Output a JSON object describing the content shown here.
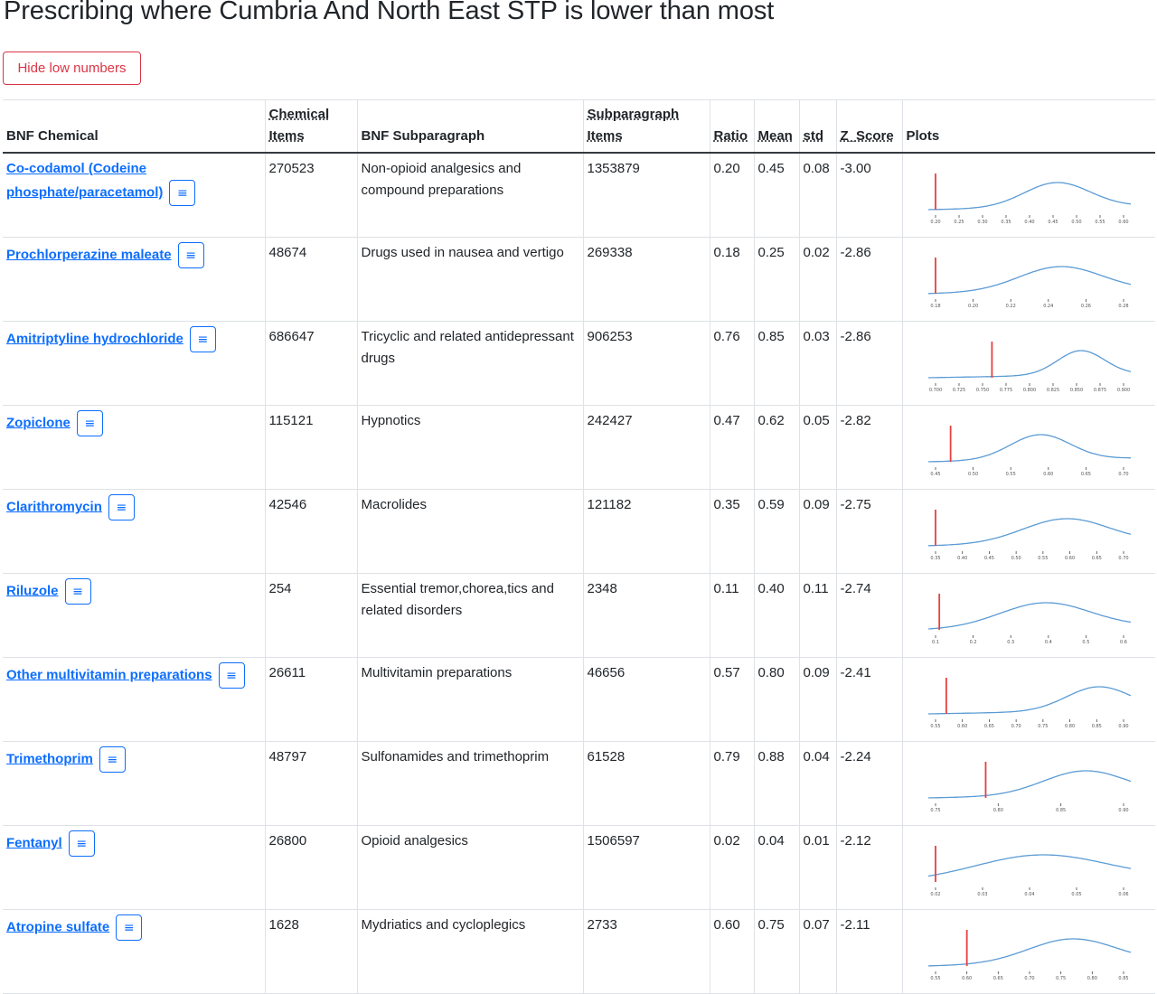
{
  "page": {
    "title": "Prescribing where Cumbria And North East STP is lower than most",
    "toggle_label": "Hide low numbers"
  },
  "table": {
    "headers": {
      "chemical": "BNF Chemical",
      "chemical_items": "Chemical Items",
      "subparagraph": "BNF Subparagraph",
      "subparagraph_items": "Subparagraph Items",
      "ratio": "Ratio",
      "mean": "Mean",
      "std": "std",
      "z_score": "Z_Score",
      "plots": "Plots"
    },
    "menu_icon": "hamburger-list-icon",
    "rows": [
      {
        "chemical": "Co-codamol (Codeine phosphate/paracetamol)",
        "chemical_items": "270523",
        "subparagraph": "Non-opioid analgesics and compound preparations",
        "subparagraph_items": "1353879",
        "ratio": "0.20",
        "mean": "0.45",
        "std": "0.08",
        "z_score": "-3.00",
        "plot": {
          "ticks": [
            "0.20",
            "0.25",
            "0.30",
            "0.35",
            "0.40",
            "0.45",
            "0.50",
            "0.55",
            "0.60"
          ],
          "marker": 0.2,
          "peak": 0.46,
          "spread": 0.07
        }
      },
      {
        "chemical": "Prochlorperazine maleate",
        "chemical_items": "48674",
        "subparagraph": "Drugs used in nausea and vertigo",
        "subparagraph_items": "269338",
        "ratio": "0.18",
        "mean": "0.25",
        "std": "0.02",
        "z_score": "-2.86",
        "plot": {
          "ticks": [
            "0.18",
            "0.20",
            "0.22",
            "0.24",
            "0.26",
            "0.28"
          ],
          "marker": 0.18,
          "peak": 0.247,
          "spread": 0.022
        }
      },
      {
        "chemical": "Amitriptyline hydrochloride",
        "chemical_items": "686647",
        "subparagraph": "Tricyclic and related antidepressant drugs",
        "subparagraph_items": "906253",
        "ratio": "0.76",
        "mean": "0.85",
        "std": "0.03",
        "z_score": "-2.86",
        "plot": {
          "ticks": [
            "0.700",
            "0.725",
            "0.750",
            "0.775",
            "0.800",
            "0.825",
            "0.850",
            "0.875",
            "0.900"
          ],
          "marker": 0.76,
          "peak": 0.855,
          "spread": 0.025
        }
      },
      {
        "chemical": "Zopiclone",
        "chemical_items": "115121",
        "subparagraph": "Hypnotics",
        "subparagraph_items": "242427",
        "ratio": "0.47",
        "mean": "0.62",
        "std": "0.05",
        "z_score": "-2.82",
        "plot": {
          "ticks": [
            "0.45",
            "0.50",
            "0.55",
            "0.60",
            "0.65",
            "0.70"
          ],
          "marker": 0.47,
          "peak": 0.59,
          "spread": 0.04
        }
      },
      {
        "chemical": "Clarithromycin",
        "chemical_items": "42546",
        "subparagraph": "Macrolides",
        "subparagraph_items": "121182",
        "ratio": "0.35",
        "mean": "0.59",
        "std": "0.09",
        "z_score": "-2.75",
        "plot": {
          "ticks": [
            "0.35",
            "0.40",
            "0.45",
            "0.50",
            "0.55",
            "0.60",
            "0.65",
            "0.70"
          ],
          "marker": 0.35,
          "peak": 0.595,
          "spread": 0.08
        }
      },
      {
        "chemical": "Riluzole",
        "chemical_items": "254",
        "subparagraph": "Essential tremor,chorea,tics and related disorders",
        "subparagraph_items": "2348",
        "ratio": "0.11",
        "mean": "0.40",
        "std": "0.11",
        "z_score": "-2.74",
        "plot": {
          "ticks": [
            "0.1",
            "0.2",
            "0.3",
            "0.4",
            "0.5",
            "0.6"
          ],
          "marker": 0.11,
          "peak": 0.395,
          "spread": 0.12
        }
      },
      {
        "chemical": "Other multivitamin preparations",
        "chemical_items": "26611",
        "subparagraph": "Multivitamin preparations",
        "subparagraph_items": "46656",
        "ratio": "0.57",
        "mean": "0.80",
        "std": "0.09",
        "z_score": "-2.41",
        "plot": {
          "ticks": [
            "0.55",
            "0.60",
            "0.65",
            "0.70",
            "0.75",
            "0.80",
            "0.85",
            "0.90"
          ],
          "marker": 0.57,
          "peak": 0.855,
          "spread": 0.06
        }
      },
      {
        "chemical": "Trimethoprim",
        "chemical_items": "48797",
        "subparagraph": "Sulfonamides and trimethoprim",
        "subparagraph_items": "61528",
        "ratio": "0.79",
        "mean": "0.88",
        "std": "0.04",
        "z_score": "-2.24",
        "plot": {
          "ticks": [
            "0.75",
            "0.80",
            "0.85",
            "0.90"
          ],
          "marker": 0.79,
          "peak": 0.87,
          "spread": 0.033
        }
      },
      {
        "chemical": "Fentanyl",
        "chemical_items": "26800",
        "subparagraph": "Opioid analgesics",
        "subparagraph_items": "1506597",
        "ratio": "0.02",
        "mean": "0.04",
        "std": "0.01",
        "z_score": "-2.12",
        "plot": {
          "ticks": [
            "0.02",
            "0.03",
            "0.04",
            "0.05",
            "0.06"
          ],
          "marker": 0.02,
          "peak": 0.043,
          "spread": 0.014
        }
      },
      {
        "chemical": "Atropine sulfate",
        "chemical_items": "1628",
        "subparagraph": "Mydriatics and cycloplegics",
        "subparagraph_items": "2733",
        "ratio": "0.60",
        "mean": "0.75",
        "std": "0.07",
        "z_score": "-2.11",
        "plot": {
          "ticks": [
            "0.55",
            "0.60",
            "0.65",
            "0.70",
            "0.75",
            "0.80",
            "0.85"
          ],
          "marker": 0.6,
          "peak": 0.77,
          "spread": 0.07
        }
      }
    ]
  },
  "colors": {
    "link": "#0d6efd",
    "danger": "#dc3545",
    "curve": "#5b9bd5",
    "marker": "#e8403f"
  }
}
